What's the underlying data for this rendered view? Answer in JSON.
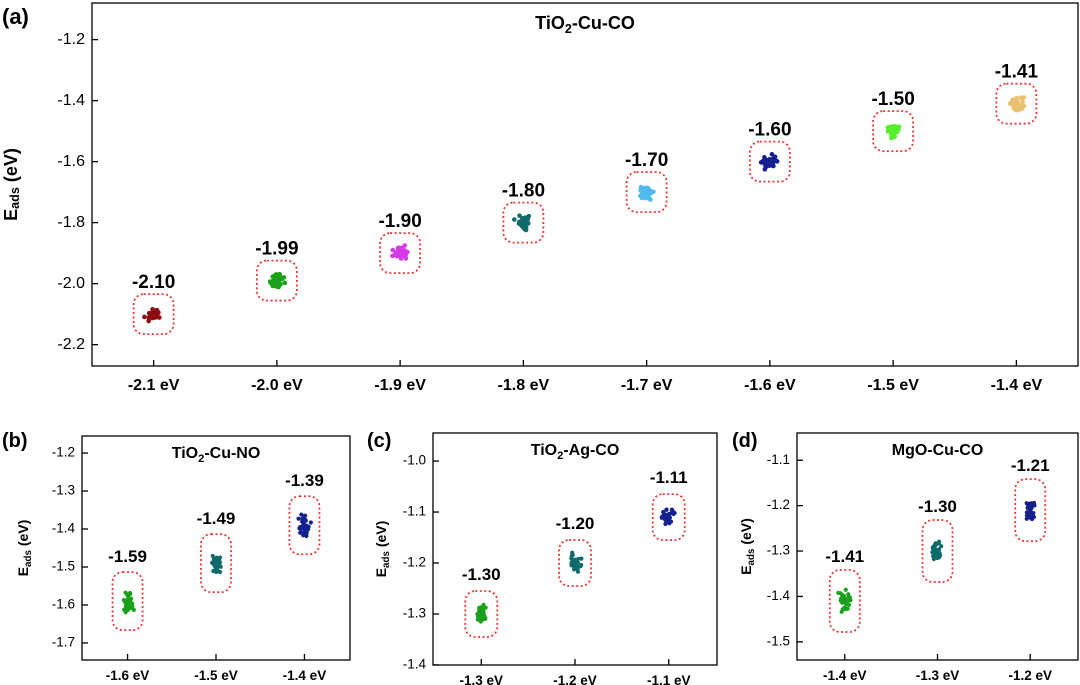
{
  "colors": {
    "axis": "#000000",
    "highlight_box": "#e53935",
    "palette": [
      "#8b0f12",
      "#1aa01a",
      "#d63be8",
      "#0f6b6b",
      "#4fbaf0",
      "#15208f",
      "#55ee2a",
      "#e9c06f"
    ]
  },
  "chart_data": [
    {
      "panel_label": "(a)",
      "type": "scatter",
      "title": "TiO2-Cu-CO",
      "title_main": "TiO",
      "title_sub": "2",
      "title_rest": "-Cu-CO",
      "ylabel_main": "E",
      "ylabel_sub": "ads",
      "ylabel_rest": " (eV)",
      "categories": [
        "-2.1 eV",
        "-2.0 eV",
        "-1.9 eV",
        "-1.8 eV",
        "-1.7 eV",
        "-1.6 eV",
        "-1.5 eV",
        "-1.4 eV"
      ],
      "values": [
        -2.1,
        -1.99,
        -1.9,
        -1.8,
        -1.7,
        -1.6,
        -1.5,
        -1.41
      ],
      "labels": [
        "-2.10",
        "-1.99",
        "-1.90",
        "-1.80",
        "-1.70",
        "-1.60",
        "-1.50",
        "-1.41"
      ],
      "yticks": [
        -1.2,
        -1.4,
        -1.6,
        -1.8,
        -2.0,
        -2.2
      ],
      "ytick_labels": [
        "-1.2",
        "-1.4",
        "-1.6",
        "-1.8",
        "-2.0",
        "-2.2"
      ],
      "ylim": [
        -2.27,
        -1.08
      ],
      "colors": [
        "#8b0f12",
        "#1aa01a",
        "#d63be8",
        "#0f6b6b",
        "#4fbaf0",
        "#15208f",
        "#55ee2a",
        "#e9c06f"
      ],
      "grid": false,
      "legend": "none"
    },
    {
      "panel_label": "(b)",
      "type": "scatter",
      "title": "TiO2-Cu-NO",
      "title_main": "TiO",
      "title_sub": "2",
      "title_rest": "-Cu-NO",
      "ylabel_main": "E",
      "ylabel_sub": "ads",
      "ylabel_rest": " (eV)",
      "categories": [
        "-1.6 eV",
        "-1.5 eV",
        "-1.4 eV"
      ],
      "values": [
        -1.59,
        -1.49,
        -1.39
      ],
      "labels": [
        "-1.59",
        "-1.49",
        "-1.39"
      ],
      "yticks": [
        -1.2,
        -1.3,
        -1.4,
        -1.5,
        -1.6,
        -1.7
      ],
      "ytick_labels": [
        "-1.2",
        "-1.3",
        "-1.4",
        "-1.5",
        "-1.6",
        "-1.7"
      ],
      "ylim": [
        -1.745,
        -1.155
      ],
      "colors": [
        "#1aa01a",
        "#0f6b6b",
        "#15208f"
      ],
      "grid": false,
      "legend": "none"
    },
    {
      "panel_label": "(c)",
      "type": "scatter",
      "title": "TiO2-Ag-CO",
      "title_main": "TiO",
      "title_sub": "2",
      "title_rest": "-Ag-CO",
      "ylabel_main": "E",
      "ylabel_sub": "ads",
      "ylabel_rest": " (eV)",
      "categories": [
        "-1.3 eV",
        "-1.2 eV",
        "-1.1 eV"
      ],
      "values": [
        -1.3,
        -1.2,
        -1.11
      ],
      "labels": [
        "-1.30",
        "-1.20",
        "-1.11"
      ],
      "yticks": [
        -1.0,
        -1.1,
        -1.2,
        -1.3,
        -1.4
      ],
      "ytick_labels": [
        "-1.0",
        "-1.1",
        "-1.2",
        "-1.3",
        "-1.4"
      ],
      "ylim": [
        -1.4,
        -0.945
      ],
      "colors": [
        "#1aa01a",
        "#0f6b6b",
        "#15208f"
      ],
      "grid": false,
      "legend": "none"
    },
    {
      "panel_label": "(d)",
      "type": "scatter",
      "title": "MgO-Cu-CO",
      "title_main": "MgO-Cu-CO",
      "title_sub": "",
      "title_rest": "",
      "ylabel_main": "E",
      "ylabel_sub": "ads",
      "ylabel_rest": " (eV)",
      "categories": [
        "-1.4 eV",
        "-1.3 eV",
        "-1.2 eV"
      ],
      "values": [
        -1.41,
        -1.3,
        -1.21
      ],
      "labels": [
        "-1.41",
        "-1.30",
        "-1.21"
      ],
      "yticks": [
        -1.1,
        -1.2,
        -1.3,
        -1.4,
        -1.5
      ],
      "ytick_labels": [
        "-1.1",
        "-1.2",
        "-1.3",
        "-1.4",
        "-1.5"
      ],
      "ylim": [
        -1.54,
        -1.04
      ],
      "colors": [
        "#1aa01a",
        "#0f6b6b",
        "#15208f"
      ],
      "grid": false,
      "legend": "none"
    }
  ]
}
